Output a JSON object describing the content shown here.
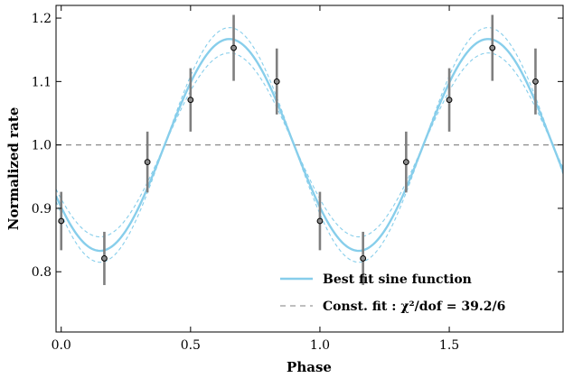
{
  "chart_data": {
    "type": "line",
    "xlabel": "Phase",
    "ylabel": "Normalized rate",
    "xlim": [
      -0.02,
      1.94
    ],
    "ylim": [
      0.705,
      1.22
    ],
    "x_ticks": [
      0.0,
      0.5,
      1.0,
      1.5
    ],
    "x_tick_labels": [
      "0.0",
      "0.5",
      "1.0",
      "1.5"
    ],
    "y_ticks": [
      0.8,
      0.9,
      1.0,
      1.1,
      1.2
    ],
    "y_tick_labels": [
      "0.8",
      "0.9",
      "1.0",
      "1.1",
      "1.2"
    ],
    "grid": false,
    "legend_position": "lower-right",
    "series": [
      {
        "kind": "errorbar-points",
        "x": [
          0.0,
          0.1667,
          0.3333,
          0.5,
          0.6667,
          0.8333,
          1.0,
          1.1667,
          1.3333,
          1.5,
          1.6667,
          1.8333
        ],
        "y": [
          0.88,
          0.821,
          0.973,
          1.071,
          1.153,
          1.1,
          0.88,
          0.821,
          0.973,
          1.071,
          1.153,
          1.1
        ],
        "yerr": [
          0.046,
          0.042,
          0.048,
          0.05,
          0.052,
          0.052,
          0.046,
          0.042,
          0.048,
          0.05,
          0.052,
          0.052
        ],
        "color": "#7f7f7f"
      },
      {
        "kind": "best-fit-sine",
        "name": "Best fit sine function",
        "mean": 1.0,
        "amplitude": 0.167,
        "period": 1.0,
        "peak_phase": 0.65,
        "color": "#87ceeb"
      },
      {
        "kind": "fit-uncertainty-band",
        "amplitude_low": 0.145,
        "amplitude_high": 0.185,
        "color": "#87ceeb"
      },
      {
        "kind": "constant-fit",
        "name": "Const. fit : χ²/dof = 39.2/6",
        "y": 1.0,
        "color": "#7f7f7f"
      }
    ],
    "legend": [
      {
        "label": "Best fit sine function",
        "style": "solid",
        "color": "#87ceeb"
      },
      {
        "label": "Const. fit : χ²/dof = 39.2/6",
        "style": "dashed",
        "color": "#7f7f7f"
      }
    ]
  }
}
